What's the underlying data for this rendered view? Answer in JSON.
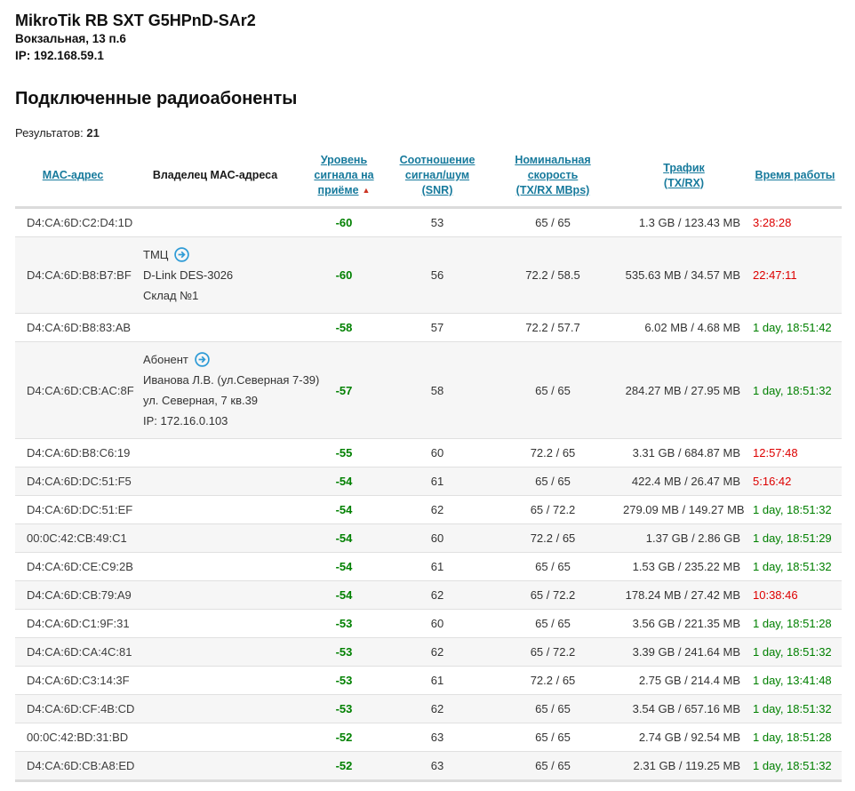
{
  "device": {
    "title": "MikroTik RB SXT G5HPnD-SAr2",
    "location": "Вокзальная, 13 п.6",
    "ip": "IP: 192.168.59.1"
  },
  "section_title": "Подключенные радиоабоненты",
  "results": {
    "label": "Результатов:",
    "count": "21"
  },
  "colors": {
    "link": "#177A9C",
    "green": "#008000",
    "red": "#DD0000",
    "icon_blue": "#2E9BD6",
    "sort_arrow": "#CC3322",
    "stripe": "#F6F6F6",
    "rule": "#E0E0E0"
  },
  "table": {
    "columns": [
      {
        "id": "mac",
        "lines": [
          "МАС-адрес"
        ],
        "link": true
      },
      {
        "id": "owner",
        "lines": [
          "Владелец МАС-адреса"
        ],
        "link": false
      },
      {
        "id": "signal",
        "lines": [
          "Уровень",
          "сигнала на",
          "приёме"
        ],
        "link": true,
        "sorted": "asc",
        "sort_glyph": "▲"
      },
      {
        "id": "snr",
        "lines": [
          "Соотношение",
          "сигнал/шум",
          "(SNR)"
        ],
        "link": true
      },
      {
        "id": "speed",
        "lines": [
          "Номинальная скорость",
          "(TX/RX МBps)"
        ],
        "link": true
      },
      {
        "id": "traffic",
        "lines": [
          "Трафик",
          "(TX/RX)"
        ],
        "link": true
      },
      {
        "id": "uptime",
        "lines": [
          "Время работы"
        ],
        "link": true
      }
    ],
    "rows": [
      {
        "mac": "D4:CA:6D:C2:D4:1D",
        "owner": null,
        "signal": "-60",
        "snr": "53",
        "speed": "65 / 65",
        "traffic": "1.3 GB / 123.43 MB",
        "uptime": "3:28:28",
        "uptime_color": "red"
      },
      {
        "mac": "D4:CA:6D:B8:B7:BF",
        "owner": {
          "name": "ТМЦ",
          "has_icon": true,
          "extra_lines": [
            "D-Link DES-3026",
            "Склад №1"
          ]
        },
        "signal": "-60",
        "snr": "56",
        "speed": "72.2 / 58.5",
        "traffic": "535.63 MB / 34.57 MB",
        "uptime": "22:47:11",
        "uptime_color": "red"
      },
      {
        "mac": "D4:CA:6D:B8:83:AB",
        "owner": null,
        "signal": "-58",
        "snr": "57",
        "speed": "72.2 / 57.7",
        "traffic": "6.02 MB / 4.68 MB",
        "uptime": "1 day, 18:51:42",
        "uptime_color": "green"
      },
      {
        "mac": "D4:CA:6D:CB:AC:8F",
        "owner": {
          "name": "Абонент",
          "has_icon": true,
          "extra_lines": [
            "Иванова Л.В. (ул.Северная 7-39)",
            "ул. Северная, 7 кв.39",
            "IP: 172.16.0.103"
          ]
        },
        "signal": "-57",
        "snr": "58",
        "speed": "65 / 65",
        "traffic": "284.27 MB / 27.95 MB",
        "uptime": "1 day, 18:51:32",
        "uptime_color": "green"
      },
      {
        "mac": "D4:CA:6D:B8:C6:19",
        "owner": null,
        "signal": "-55",
        "snr": "60",
        "speed": "72.2 / 65",
        "traffic": "3.31 GB / 684.87 MB",
        "uptime": "12:57:48",
        "uptime_color": "red"
      },
      {
        "mac": "D4:CA:6D:DC:51:F5",
        "owner": null,
        "signal": "-54",
        "snr": "61",
        "speed": "65 / 65",
        "traffic": "422.4 MB / 26.47 MB",
        "uptime": "5:16:42",
        "uptime_color": "red"
      },
      {
        "mac": "D4:CA:6D:DC:51:EF",
        "owner": null,
        "signal": "-54",
        "snr": "62",
        "speed": "65 / 72.2",
        "traffic": "279.09 MB / 149.27 MB",
        "uptime": "1 day, 18:51:32",
        "uptime_color": "green"
      },
      {
        "mac": "00:0C:42:CB:49:C1",
        "owner": null,
        "signal": "-54",
        "snr": "60",
        "speed": "72.2 / 65",
        "traffic": "1.37 GB / 2.86 GB",
        "uptime": "1 day, 18:51:29",
        "uptime_color": "green"
      },
      {
        "mac": "D4:CA:6D:CE:C9:2B",
        "owner": null,
        "signal": "-54",
        "snr": "61",
        "speed": "65 / 65",
        "traffic": "1.53 GB / 235.22 MB",
        "uptime": "1 day, 18:51:32",
        "uptime_color": "green"
      },
      {
        "mac": "D4:CA:6D:CB:79:A9",
        "owner": null,
        "signal": "-54",
        "snr": "62",
        "speed": "65 / 72.2",
        "traffic": "178.24 MB / 27.42 MB",
        "uptime": "10:38:46",
        "uptime_color": "red"
      },
      {
        "mac": "D4:CA:6D:C1:9F:31",
        "owner": null,
        "signal": "-53",
        "snr": "60",
        "speed": "65 / 65",
        "traffic": "3.56 GB / 221.35 MB",
        "uptime": "1 day, 18:51:28",
        "uptime_color": "green"
      },
      {
        "mac": "D4:CA:6D:CA:4C:81",
        "owner": null,
        "signal": "-53",
        "snr": "62",
        "speed": "65 / 72.2",
        "traffic": "3.39 GB / 241.64 MB",
        "uptime": "1 day, 18:51:32",
        "uptime_color": "green"
      },
      {
        "mac": "D4:CA:6D:C3:14:3F",
        "owner": null,
        "signal": "-53",
        "snr": "61",
        "speed": "72.2 / 65",
        "traffic": "2.75 GB / 214.4 MB",
        "uptime": "1 day, 13:41:48",
        "uptime_color": "green"
      },
      {
        "mac": "D4:CA:6D:CF:4B:CD",
        "owner": null,
        "signal": "-53",
        "snr": "62",
        "speed": "65 / 65",
        "traffic": "3.54 GB / 657.16 MB",
        "uptime": "1 day, 18:51:32",
        "uptime_color": "green"
      },
      {
        "mac": "00:0C:42:BD:31:BD",
        "owner": null,
        "signal": "-52",
        "snr": "63",
        "speed": "65 / 65",
        "traffic": "2.74 GB / 92.54 MB",
        "uptime": "1 day, 18:51:28",
        "uptime_color": "green"
      },
      {
        "mac": "D4:CA:6D:CB:A8:ED",
        "owner": null,
        "signal": "-52",
        "snr": "63",
        "speed": "65 / 65",
        "traffic": "2.31 GB / 119.25 MB",
        "uptime": "1 day, 18:51:32",
        "uptime_color": "green"
      }
    ]
  }
}
